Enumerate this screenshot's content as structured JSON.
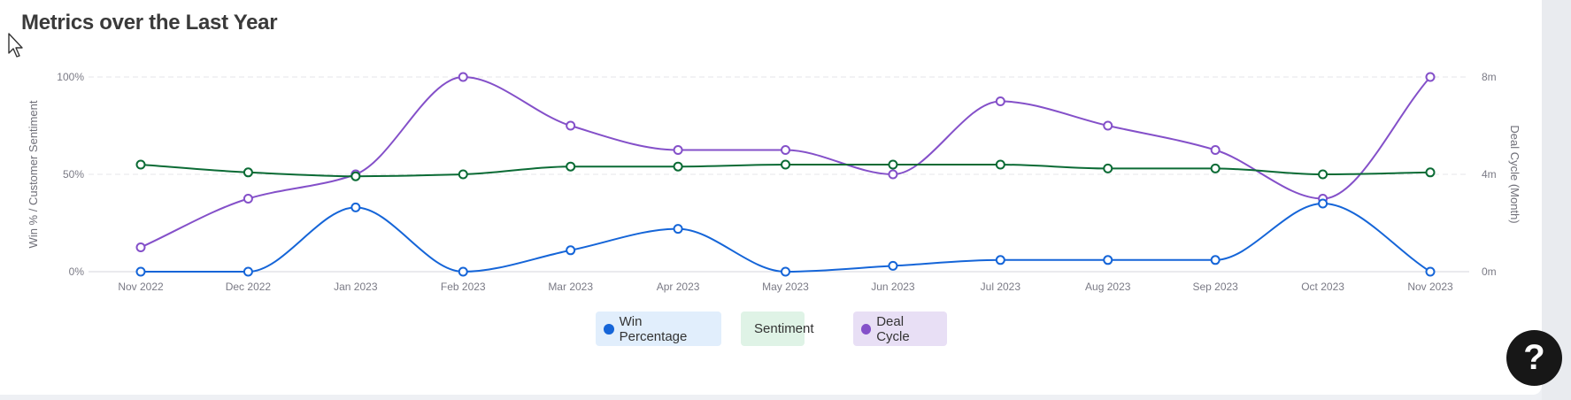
{
  "page": {
    "title": "Metrics over the Last Year"
  },
  "colors": {
    "win": "#1565d8",
    "sentiment": "#0b6b35",
    "deal": "#8450c9",
    "win_bg": "#e1eefc",
    "sentiment_bg": "#dff3e6",
    "deal_bg": "#e8dff5"
  },
  "chart_data": {
    "type": "line",
    "title": "Metrics over the Last Year",
    "categories": [
      "Nov 2022",
      "Dec 2022",
      "Jan 2023",
      "Feb 2023",
      "Mar 2023",
      "Apr 2023",
      "May 2023",
      "Jun 2023",
      "Jul 2023",
      "Aug 2023",
      "Sep 2023",
      "Oct 2023",
      "Nov 2023"
    ],
    "ylabel": "Win % / Customer Sentiment",
    "y2label": "Deal Cycle (Month)",
    "ylim": [
      0,
      100
    ],
    "y2lim": [
      0,
      8
    ],
    "yticks": [
      "0%",
      "50%",
      "100%"
    ],
    "y2ticks": [
      "0m",
      "4m",
      "8m"
    ],
    "grid": true,
    "legend_position": "bottom-center",
    "series": [
      {
        "name": "Win Percentage",
        "axis": "left",
        "color": "#1565d8",
        "values": [
          0,
          0,
          33,
          0,
          11,
          22,
          0,
          3,
          6,
          6,
          6,
          35,
          0
        ]
      },
      {
        "name": "Sentiment",
        "axis": "left",
        "color": "#0b6b35",
        "values": [
          55,
          51,
          49,
          50,
          54,
          54,
          55,
          55,
          55,
          53,
          53,
          50,
          51
        ]
      },
      {
        "name": "Deal Cycle",
        "axis": "right",
        "color": "#8450c9",
        "values": [
          1,
          3,
          4,
          8,
          6,
          5,
          5,
          4,
          7,
          6,
          5,
          3,
          8
        ]
      }
    ]
  },
  "legend": [
    {
      "label": "Win Percentage",
      "color": "#1565d8"
    },
    {
      "label": "Sentiment",
      "color": "#0b6b35"
    },
    {
      "label": "Deal Cycle",
      "color": "#8450c9"
    }
  ],
  "help": {
    "label": "?"
  }
}
